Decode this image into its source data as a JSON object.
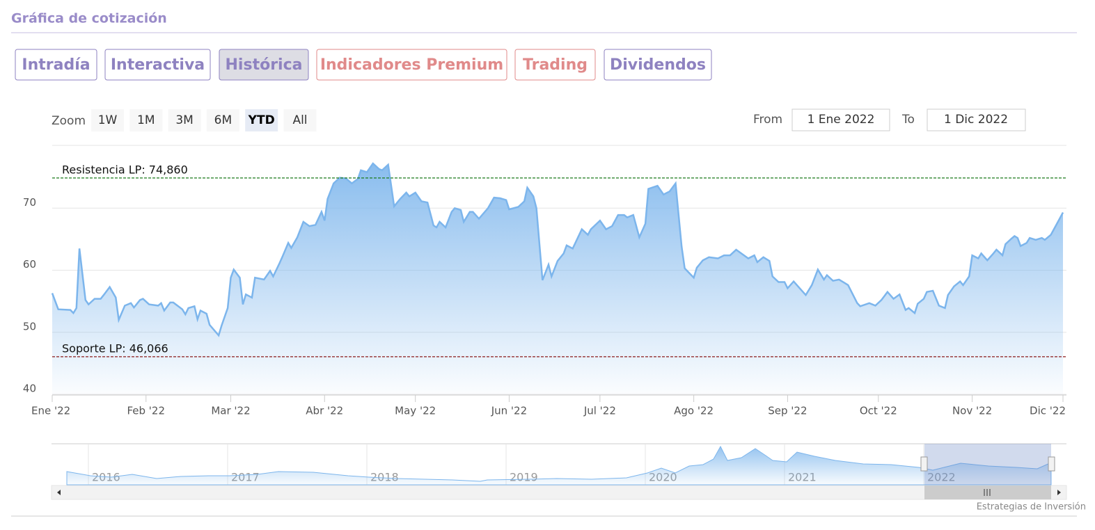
{
  "header": {
    "title": "Gráfica de cotización"
  },
  "tabs": [
    {
      "label": "Intradía",
      "color": "#8e82c0"
    },
    {
      "label": "Interactiva",
      "color": "#8e82c0"
    },
    {
      "label": "Histórica",
      "color": "#8e82c0"
    },
    {
      "label": "Indicadores Premium",
      "color": "#e08a8a"
    },
    {
      "label": "Trading",
      "color": "#e08a8a"
    },
    {
      "label": "Dividendos",
      "color": "#8e82c0"
    }
  ],
  "active_tab": 2,
  "zoom": {
    "label": "Zoom",
    "buttons": [
      "1W",
      "1M",
      "3M",
      "6M",
      "YTD",
      "All"
    ],
    "selected": 4
  },
  "range": {
    "from_label": "From",
    "from": "1 Ene 2022",
    "to_label": "To",
    "to": "1 Dic 2022"
  },
  "chart_data": {
    "type": "line",
    "color": "#7cb5ec",
    "grid": true,
    "x": [
      0,
      2,
      6,
      7,
      8,
      9,
      11,
      12,
      14,
      16,
      17,
      19,
      21,
      22,
      24,
      26,
      27,
      29,
      30,
      32,
      35,
      36,
      37,
      39,
      40,
      43,
      44,
      45,
      47,
      48,
      49,
      51,
      52,
      55,
      56,
      58,
      59,
      60,
      62,
      63,
      64,
      66,
      67,
      70,
      72,
      73,
      75,
      76,
      78,
      79,
      81,
      83,
      85,
      87,
      89,
      90,
      91,
      93,
      95,
      97,
      99,
      101,
      102,
      104,
      106,
      108,
      109,
      111,
      113,
      115,
      117,
      118,
      120,
      122,
      124,
      126,
      127,
      128,
      130,
      132,
      133,
      135,
      136,
      138,
      139,
      141,
      144,
      146,
      148,
      150,
      151,
      154,
      156,
      157,
      159,
      160,
      162,
      164,
      165,
      167,
      169,
      170,
      172,
      175,
      177,
      178,
      181,
      183,
      185,
      187,
      189,
      190,
      192,
      194,
      196,
      197,
      200,
      202,
      204,
      206,
      208,
      209,
      212,
      213,
      215,
      217,
      220,
      222,
      224,
      226,
      228,
      230,
      232,
      233,
      235,
      237,
      238,
      240,
      242,
      243,
      245,
      247,
      249,
      251,
      253,
      255,
      256,
      258,
      260,
      262,
      263,
      266,
      267,
      270,
      272,
      274,
      276,
      278,
      280,
      282,
      283,
      285,
      286,
      288,
      289,
      291,
      293,
      295,
      296,
      298,
      300,
      301,
      303,
      304,
      306,
      307,
      309,
      311,
      312,
      314,
      315,
      317,
      318,
      319,
      320,
      322,
      323,
      325,
      327,
      328,
      330,
      332,
      334
    ],
    "values": [
      56.3,
      53.7,
      53.6,
      53.1,
      53.9,
      63.5,
      55.2,
      54.5,
      55.4,
      55.4,
      56,
      57.3,
      55.6,
      52,
      54.3,
      54.7,
      54,
      55.2,
      55.4,
      54.5,
      54.3,
      54.7,
      53.5,
      54.8,
      54.8,
      53.7,
      52.9,
      53.9,
      54.2,
      52.1,
      53.5,
      53,
      51.2,
      49.5,
      51.1,
      53.9,
      58.8,
      60.1,
      58.8,
      54.5,
      56.1,
      55.6,
      58.8,
      58.5,
      59.9,
      59,
      61,
      62.1,
      64.4,
      63.6,
      65.3,
      67.8,
      67.1,
      67.3,
      69.4,
      68,
      71.5,
      74,
      74.9,
      74.8,
      74,
      74.7,
      76.1,
      75.8,
      77.2,
      76.3,
      76.1,
      77,
      70.3,
      71.5,
      72.5,
      71.9,
      72.5,
      71.1,
      70.9,
      67.2,
      66.9,
      67.8,
      66.9,
      69.4,
      70,
      69.7,
      67.8,
      69.4,
      69.4,
      68.3,
      70,
      71.7,
      71.6,
      71.3,
      69.8,
      70.2,
      71.1,
      73.3,
      71.9,
      70,
      58.4,
      60.9,
      59,
      61.5,
      62.7,
      64,
      63.5,
      66.6,
      65.7,
      66.6,
      68,
      66.6,
      67.1,
      68.9,
      68.9,
      68.5,
      68.9,
      65.3,
      67.5,
      73.1,
      73.6,
      72.2,
      72.7,
      74,
      63.8,
      60.3,
      58.8,
      60.4,
      61.6,
      62.1,
      61.9,
      62.4,
      62.4,
      63.3,
      62.6,
      61.9,
      62.4,
      61.3,
      62.1,
      61.5,
      59,
      58.1,
      58.1,
      57.1,
      58.2,
      57.1,
      56,
      57.6,
      60.1,
      58.5,
      59.2,
      58.3,
      58.5,
      57.9,
      57.6,
      54.7,
      54.2,
      54.7,
      54.3,
      55.2,
      56.5,
      55.4,
      56.1,
      53.6,
      53.9,
      53.1,
      54.6,
      55.4,
      56.5,
      56.7,
      54.3,
      53.9,
      56,
      57.4,
      58.2,
      57.6,
      59,
      62.4,
      61.9,
      62.7,
      61.6,
      62.7,
      63.3,
      62.4,
      64.2,
      65.1,
      65.5,
      65.2,
      63.9,
      64.4,
      65.2,
      64.9,
      65.2,
      64.9,
      65.7,
      67.5,
      69.3
    ],
    "xlim": [
      0,
      334
    ],
    "xticks": [
      {
        "value": 0,
        "label": "Ene '22"
      },
      {
        "value": 31,
        "label": "Feb '22"
      },
      {
        "value": 59,
        "label": "Mar '22"
      },
      {
        "value": 90,
        "label": "Abr '22"
      },
      {
        "value": 120,
        "label": "May '22"
      },
      {
        "value": 151,
        "label": "Jun '22"
      },
      {
        "value": 181,
        "label": "Jul '22"
      },
      {
        "value": 212,
        "label": "Ago '22"
      },
      {
        "value": 243,
        "label": "Sep '22"
      },
      {
        "value": 273,
        "label": "Oct '22"
      },
      {
        "value": 304,
        "label": "Nov '22"
      },
      {
        "value": 334,
        "label": "Dic '22"
      }
    ],
    "ylim": [
      40,
      80
    ],
    "yticks": [
      40,
      50,
      60,
      70
    ],
    "plot_lines": [
      {
        "label": "Resistencia LP: 74,860",
        "value": 74.86,
        "color": "#1a7a1a"
      },
      {
        "label": "Soporte LP: 46,066",
        "value": 46.066,
        "color": "#8b1a1a"
      }
    ]
  },
  "navigator": {
    "labels": [
      "2016",
      "2017",
      "2018",
      "2019",
      "2020",
      "2021",
      "2022"
    ]
  },
  "credits": "Estrategias de Inversión"
}
